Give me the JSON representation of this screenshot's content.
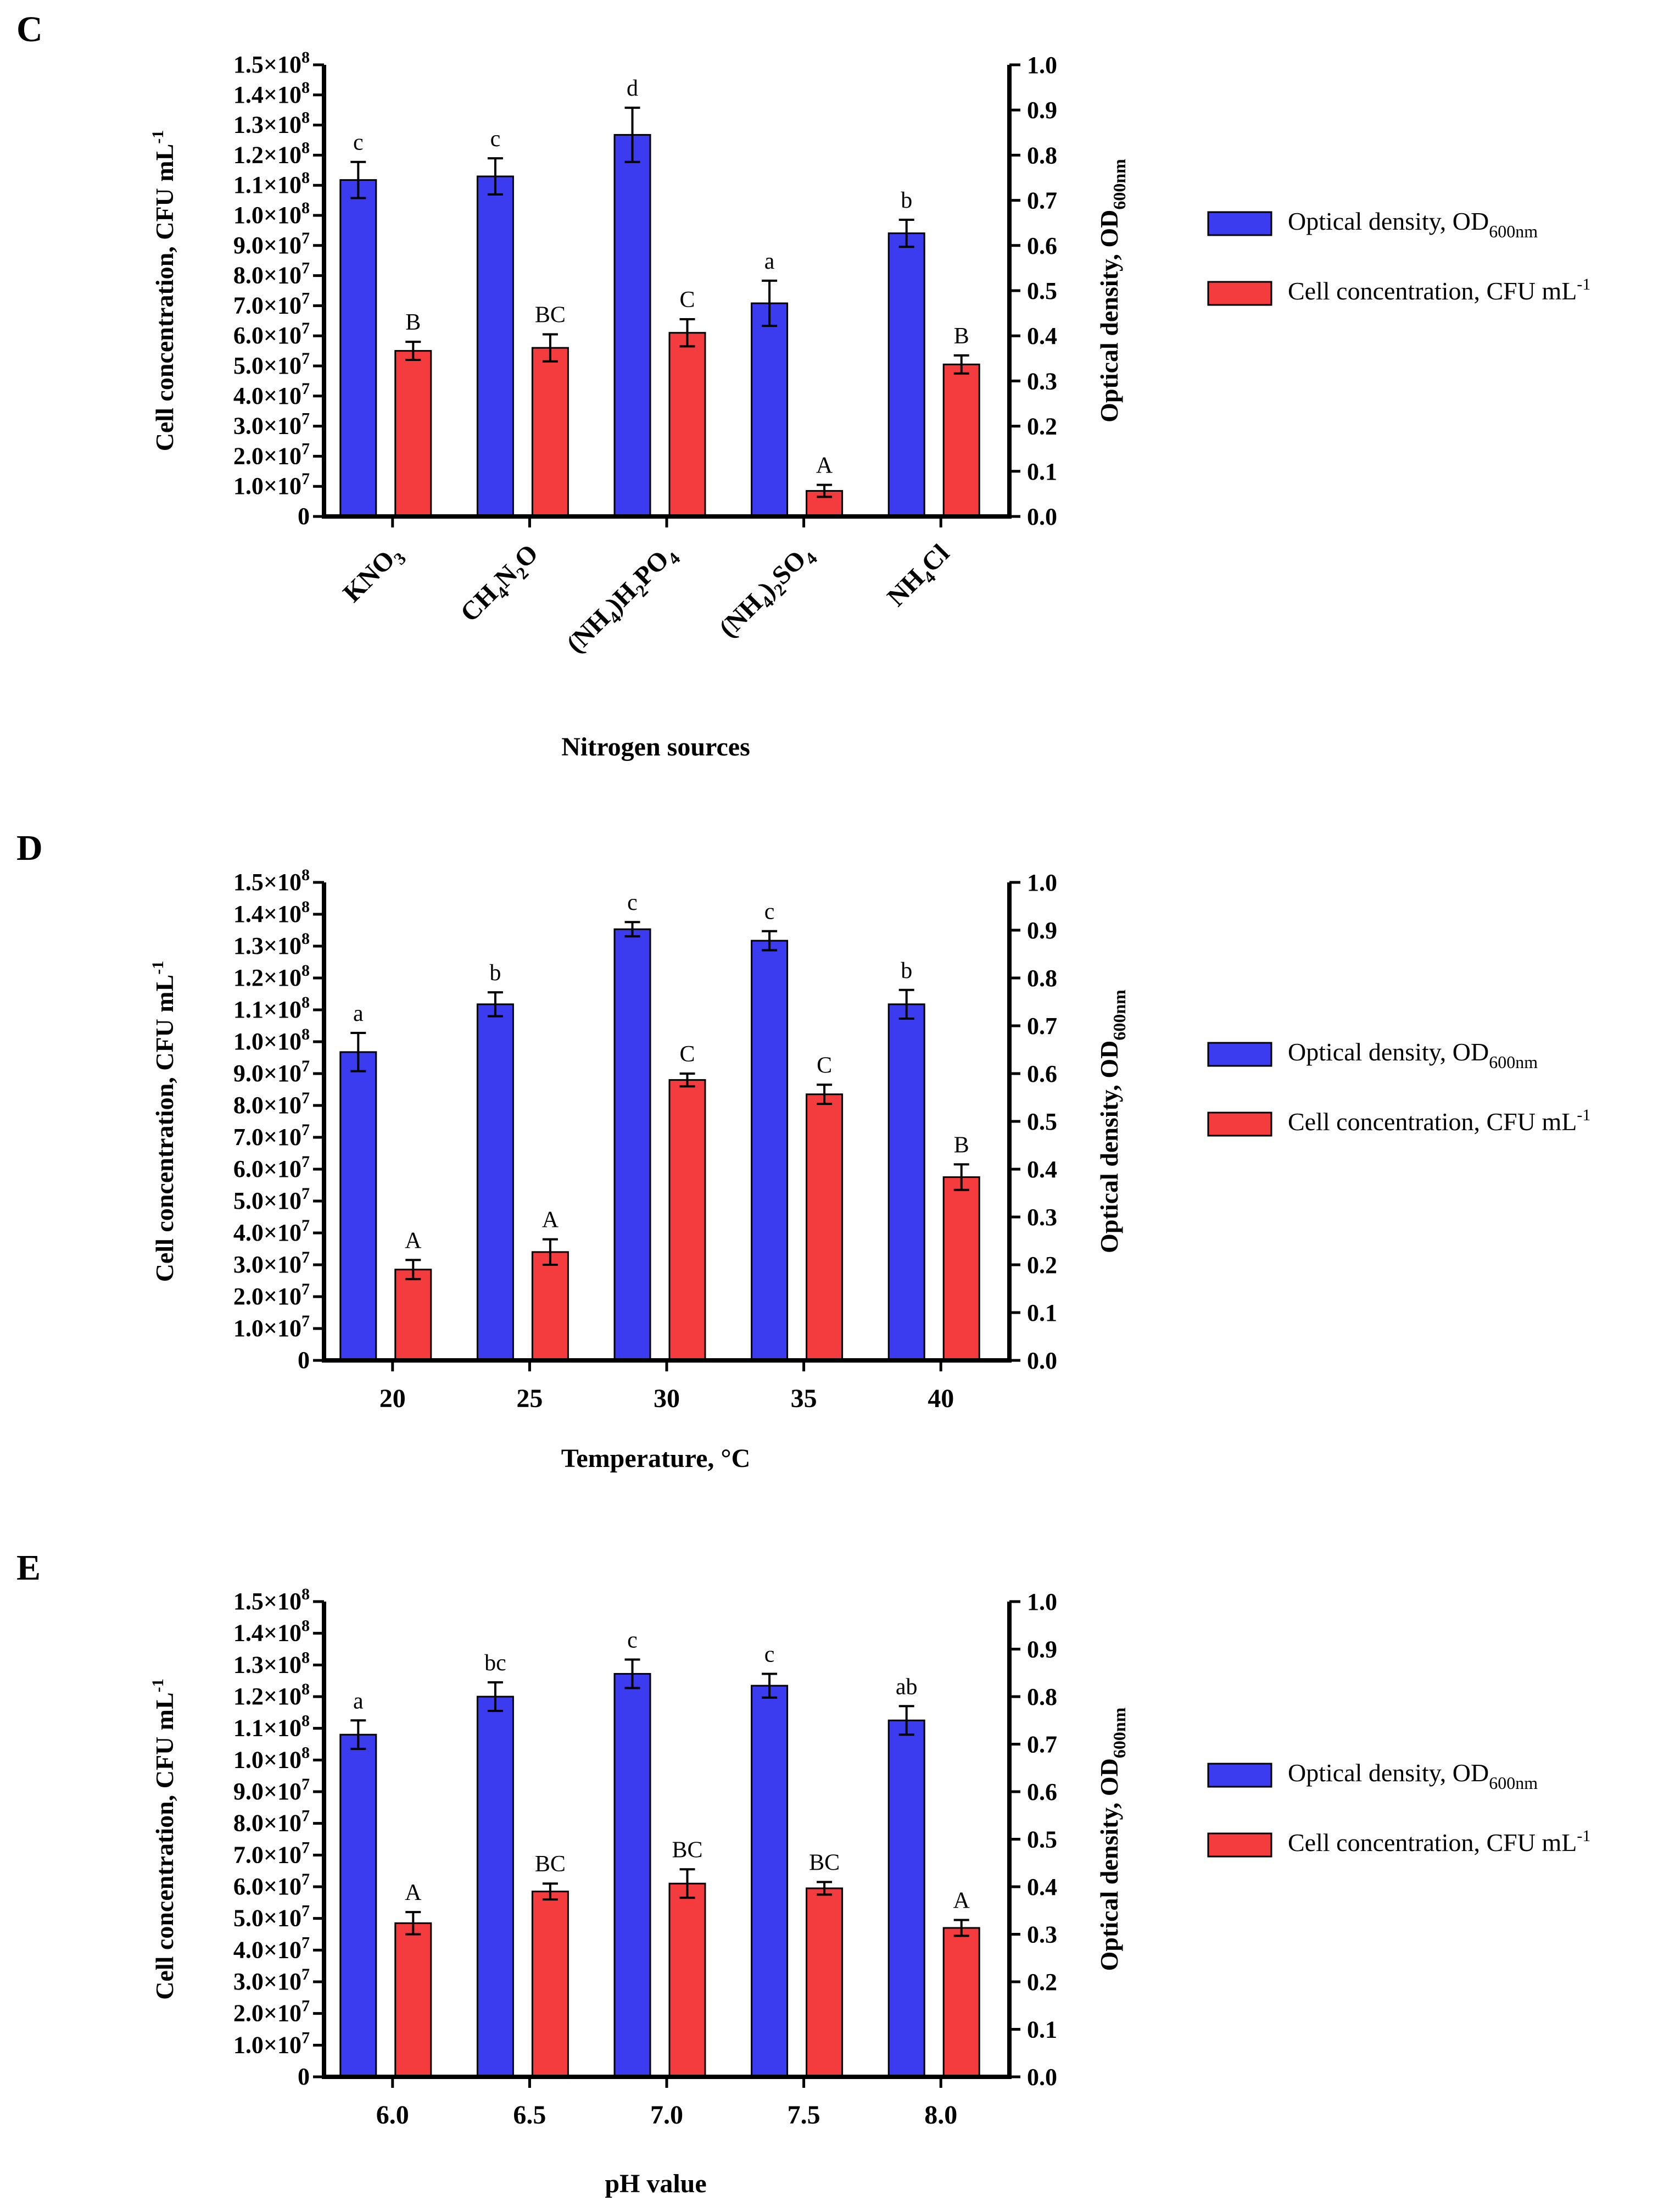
{
  "chart_data": [
    {
      "type": "bar",
      "panel": "C",
      "xlabel": "Nitrogen sources",
      "categories": [
        {
          "main": "KNO",
          "sub": "3",
          "tail": ""
        },
        {
          "main": "CH",
          "sub": "4",
          "tail": "N",
          "sub2": "2",
          "tail2": "O"
        },
        {
          "main": "(NH",
          "sub": "4",
          "tail": ")H",
          "sub2": "2",
          "tail2": "PO",
          "sub3": "4"
        },
        {
          "main": "(NH",
          "sub": "4",
          "tail": ")",
          "sub2": "2",
          "tail2": "SO",
          "sub3": "4"
        },
        {
          "main": "NH",
          "sub": "4",
          "tail": "Cl"
        }
      ],
      "category_text": [
        "KNO3",
        "CH4N2O",
        "(NH4)H2PO4",
        "(NH4)2SO4",
        "NH4Cl"
      ],
      "series": [
        {
          "name": "Optical density, OD600nm",
          "axis": "right",
          "color": "#3b3bef",
          "values": [
            0.745,
            0.753,
            0.845,
            0.472,
            0.627
          ],
          "errors": [
            0.04,
            0.04,
            0.06,
            0.05,
            0.03
          ],
          "labels": [
            "c",
            "c",
            "d",
            "a",
            "b"
          ]
        },
        {
          "name": "Cell concentration, CFU mL-1",
          "axis": "left",
          "color": "#f43c3e",
          "values": [
            55000000.0,
            56000000.0,
            61000000.0,
            8500000.0,
            50500000.0
          ],
          "errors": [
            3000000.0,
            4500000.0,
            4500000.0,
            2000000.0,
            3000000.0
          ],
          "labels": [
            "B",
            "BC",
            "C",
            "A",
            "B"
          ]
        }
      ],
      "ylim_left": [
        0,
        150000000.0
      ],
      "ylim_right": [
        0,
        1.0
      ]
    },
    {
      "type": "bar",
      "panel": "D",
      "xlabel": "Temperature, °C",
      "category_text": [
        "20",
        "25",
        "30",
        "35",
        "40"
      ],
      "series": [
        {
          "name": "Optical density, OD600nm",
          "axis": "right",
          "color": "#3b3bef",
          "values": [
            0.645,
            0.745,
            0.902,
            0.878,
            0.745
          ],
          "errors": [
            0.04,
            0.025,
            0.015,
            0.02,
            0.03
          ],
          "labels": [
            "a",
            "b",
            "c",
            "c",
            "b"
          ]
        },
        {
          "name": "Cell concentration, CFU mL-1",
          "axis": "left",
          "color": "#f43c3e",
          "values": [
            28500000.0,
            34000000.0,
            88000000.0,
            83500000.0,
            57500000.0
          ],
          "errors": [
            3000000.0,
            4000000.0,
            2000000.0,
            3000000.0,
            4000000.0
          ],
          "labels": [
            "A",
            "A",
            "C",
            "C",
            "B"
          ]
        }
      ],
      "ylim_left": [
        0,
        150000000.0
      ],
      "ylim_right": [
        0,
        1.0
      ]
    },
    {
      "type": "bar",
      "panel": "E",
      "xlabel": "pH value",
      "category_text": [
        "6.0",
        "6.5",
        "7.0",
        "7.5",
        "8.0"
      ],
      "series": [
        {
          "name": "Optical density, OD600nm",
          "axis": "right",
          "color": "#3b3bef",
          "values": [
            0.72,
            0.8,
            0.848,
            0.823,
            0.75
          ],
          "errors": [
            0.03,
            0.03,
            0.03,
            0.025,
            0.03
          ],
          "labels": [
            "a",
            "bc",
            "c",
            "c",
            "ab"
          ]
        },
        {
          "name": "Cell concentration, CFU mL-1",
          "axis": "left",
          "color": "#f43c3e",
          "values": [
            48500000.0,
            58500000.0,
            61000000.0,
            59500000.0,
            47000000.0
          ],
          "errors": [
            3500000.0,
            2500000.0,
            4500000.0,
            2000000.0,
            2500000.0
          ],
          "labels": [
            "A",
            "BC",
            "BC",
            "BC",
            "A"
          ]
        }
      ],
      "ylim_left": [
        0,
        150000000.0
      ],
      "ylim_right": [
        0,
        1.0
      ]
    }
  ],
  "axis_text": {
    "left_label": "Cell concentration, CFU mL",
    "left_label_sup": "-1",
    "right_label": "Optical density, OD",
    "right_label_sub": "600nm",
    "left_ticks": [
      "0",
      "1.0×10",
      "2.0×10",
      "3.0×10",
      "4.0×10",
      "5.0×10",
      "6.0×10",
      "7.0×10",
      "8.0×10",
      "9.0×10",
      "1.0×10",
      "1.1×10",
      "1.2×10",
      "1.3×10",
      "1.4×10",
      "1.5×10"
    ],
    "left_ticks_exp": [
      "",
      "7",
      "7",
      "7",
      "7",
      "7",
      "7",
      "7",
      "7",
      "7",
      "8",
      "8",
      "8",
      "8",
      "8",
      "8"
    ],
    "right_ticks": [
      "0.0",
      "0.1",
      "0.2",
      "0.3",
      "0.4",
      "0.5",
      "0.6",
      "0.7",
      "0.8",
      "0.9",
      "1.0"
    ]
  },
  "legend": {
    "od": "Optical density, OD",
    "od_sub": "600nm",
    "cell": "Cell concentration, CFU mL",
    "cell_sup": "-1"
  }
}
